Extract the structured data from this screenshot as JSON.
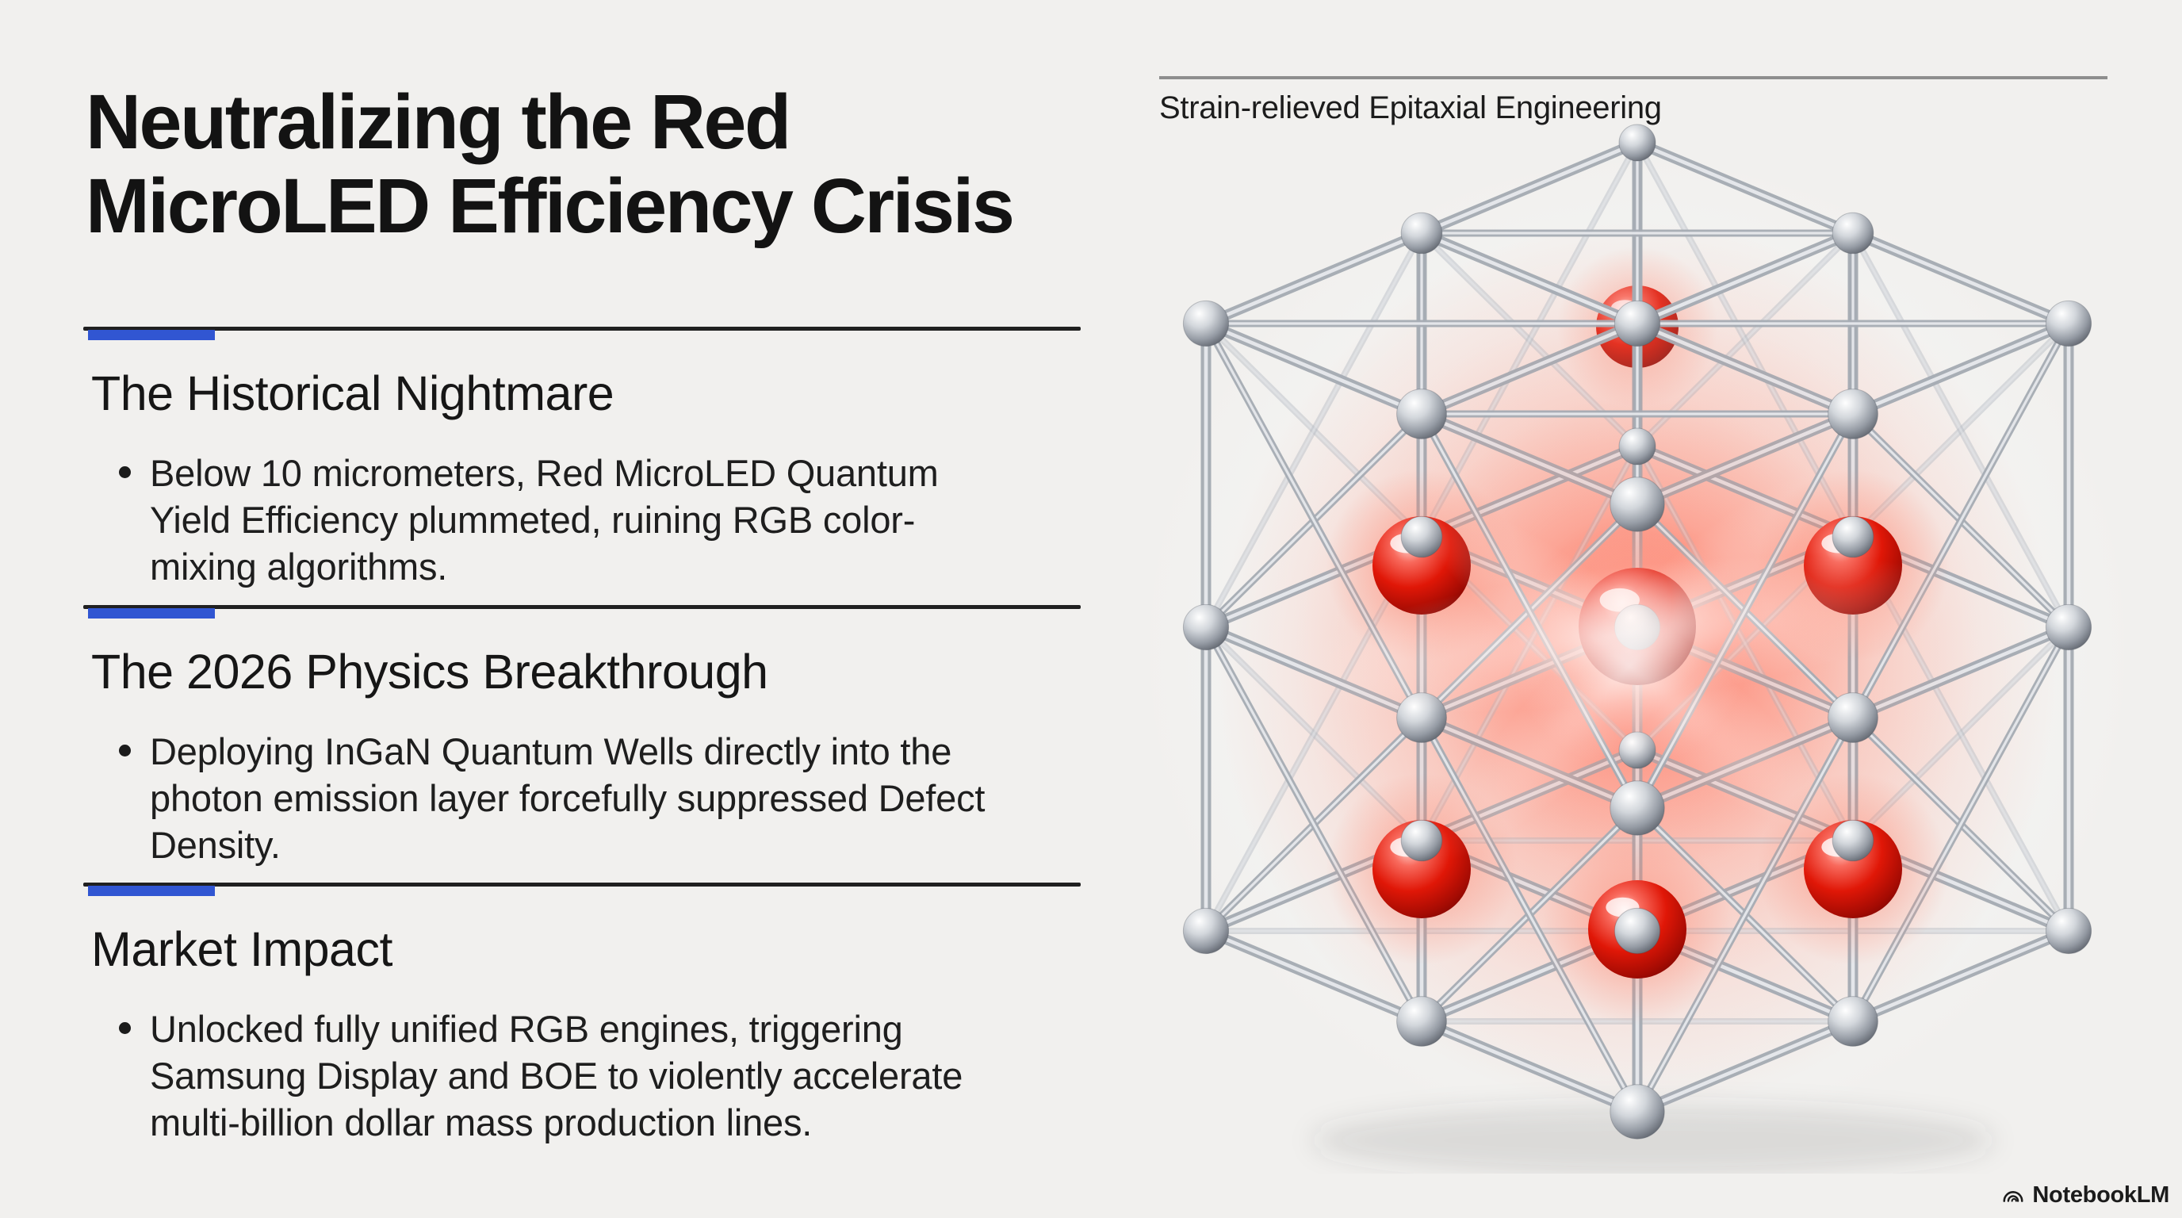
{
  "slide": {
    "title_line1": "Neutralizing the Red",
    "title_line2": "MicroLED Efficiency Crisis"
  },
  "sections": [
    {
      "heading": "The Historical Nightmare",
      "bullet": "Below 10 micrometers, Red MicroLED Quantum Yield Efficiency plummeted, ruining RGB color-mixing algorithms."
    },
    {
      "heading": "The 2026 Physics Breakthrough",
      "bullet": "Deploying InGaN Quantum Wells directly into the photon emission layer forcefully suppressed Defect Density."
    },
    {
      "heading": "Market Impact",
      "bullet": "Unlocked fully unified RGB engines, triggering Samsung Display and BOE to violently accelerate multi-billion dollar mass production lines."
    }
  ],
  "figure": {
    "caption": "Strain-relieved Epitaxial Engineering",
    "alt": "3D ball-and-stick crystal lattice cube of chrome spheres and rods with glowing red spheres embedded inside"
  },
  "brand": {
    "label": "NotebookLM"
  },
  "colors": {
    "background": "#f1f0ee",
    "accent_blue": "#3156d2",
    "heading_rule": "#202020",
    "caption_rule": "#8e8e8e",
    "red_sphere": "#d81305",
    "silver_rod": "#a6acb4"
  }
}
